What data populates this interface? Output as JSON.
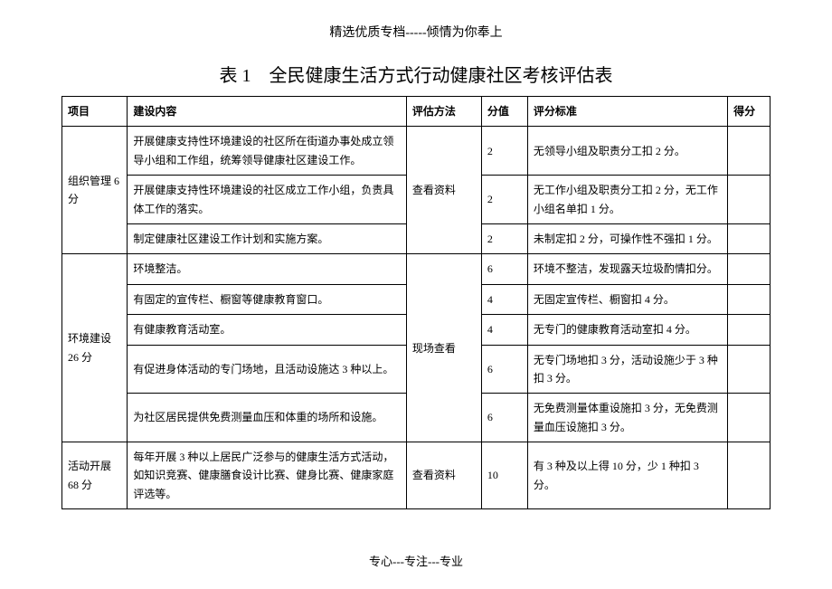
{
  "header": "精选优质专档-----倾情为你奉上",
  "title": "表 1　全民健康生活方式行动健康社区考核评估表",
  "footer": "专心---专注---专业",
  "columns": {
    "project": "项目",
    "content": "建设内容",
    "method": "评估方法",
    "score": "分值",
    "criteria": "评分标准",
    "result": "得分"
  },
  "groups": [
    {
      "project": "组织管理 6 分",
      "method": "查看资料",
      "rows": [
        {
          "content": "开展健康支持性环境建设的社区所在街道办事处成立领导小组和工作组，统筹领导健康社区建设工作。",
          "score": "2",
          "criteria": "无领导小组及职责分工扣 2 分。"
        },
        {
          "content": "开展健康支持性环境建设的社区成立工作小组，负责具体工作的落实。",
          "score": "2",
          "criteria": "无工作小组及职责分工扣 2 分，无工作小组名单扣 1 分。"
        },
        {
          "content": "制定健康社区建设工作计划和实施方案。",
          "score": "2",
          "criteria": "未制定扣 2 分，可操作性不强扣 1 分。"
        }
      ]
    },
    {
      "project": "环境建设 26 分",
      "method": "现场查看",
      "rows": [
        {
          "content": "环境整洁。",
          "score": "6",
          "criteria": "环境不整洁，发现露天垃圾酌情扣分。"
        },
        {
          "content": "有固定的宣传栏、橱窗等健康教育窗口。",
          "score": "4",
          "criteria": "无固定宣传栏、橱窗扣 4 分。"
        },
        {
          "content": "有健康教育活动室。",
          "score": "4",
          "criteria": "无专门的健康教育活动室扣 4 分。"
        },
        {
          "content": "有促进身体活动的专门场地，且活动设施达 3 种以上。",
          "score": "6",
          "criteria": "无专门场地扣 3 分，活动设施少于 3 种扣 3 分。"
        },
        {
          "content": "为社区居民提供免费测量血压和体重的场所和设施。",
          "score": "6",
          "criteria": "无免费测量体重设施扣 3 分，无免费测量血压设施扣 3 分。"
        }
      ]
    },
    {
      "project": "活动开展 68 分",
      "method": "查看资料",
      "rows": [
        {
          "content": "每年开展 3 种以上居民广泛参与的健康生活方式活动，如知识竞赛、健康膳食设计比赛、健身比赛、健康家庭评选等。",
          "score": "10",
          "criteria": "有 3 种及以上得 10 分，少 1 种扣 3 分。"
        }
      ]
    }
  ]
}
